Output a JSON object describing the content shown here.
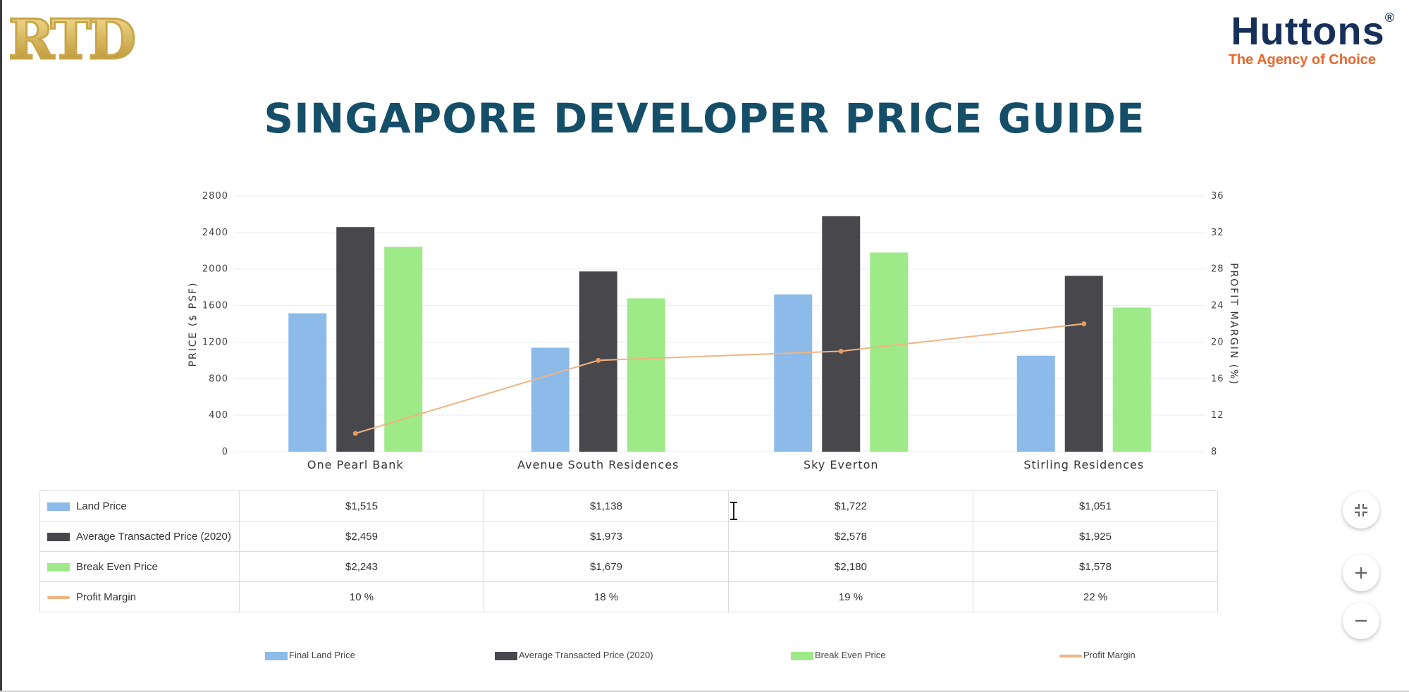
{
  "header": {
    "logo_left_text": "RTD",
    "logo_right_brand": "Huttons",
    "logo_right_reg": "®",
    "logo_right_tagline": "The Agency of Choice"
  },
  "title": "SINGAPORE DEVELOPER PRICE GUIDE",
  "chart_data": {
    "type": "bar",
    "categories": [
      "One Pearl Bank",
      "Avenue South Residences",
      "Sky Everton",
      "Stirling Residences"
    ],
    "series": [
      {
        "name": "Land Price",
        "type": "bar",
        "axis": "left",
        "color": "#8cbbea",
        "values": [
          1515,
          1138,
          1722,
          1051
        ]
      },
      {
        "name": "Average Transacted Price (2020)",
        "type": "bar",
        "axis": "left",
        "color": "#48484c",
        "values": [
          2459,
          1973,
          2578,
          1925
        ]
      },
      {
        "name": "Break Even Price",
        "type": "bar",
        "axis": "left",
        "color": "#9eea89",
        "values": [
          2243,
          1679,
          2180,
          1578
        ]
      },
      {
        "name": "Profit Margin",
        "type": "line",
        "axis": "right",
        "color": "#f0b483",
        "values": [
          10,
          18,
          19,
          22
        ]
      }
    ],
    "ylabel": "PRICE ($ PSF)",
    "ylim": [
      0,
      2800
    ],
    "yticks": [
      "0",
      "400",
      "800",
      "1200",
      "1600",
      "2000",
      "2400",
      "2800"
    ],
    "y2label": "PROFIT MARGIN (%)",
    "y2lim": [
      8,
      36
    ],
    "y2ticks": [
      "8",
      "12",
      "16",
      "20",
      "24",
      "28",
      "32",
      "36"
    ],
    "grid": true,
    "legend_position": "bottom"
  },
  "table": {
    "rows": [
      {
        "label": "Land Price",
        "color": "#8cbbea",
        "marker": "bar",
        "cells": [
          "$1,515",
          "$1,138",
          "$1,722",
          "$1,051"
        ]
      },
      {
        "label": "Average Transacted Price (2020)",
        "color": "#48484c",
        "marker": "bar",
        "cells": [
          "$2,459",
          "$1,973",
          "$2,578",
          "$1,925"
        ]
      },
      {
        "label": "Break Even Price",
        "color": "#9eea89",
        "marker": "bar",
        "cells": [
          "$2,243",
          "$1,679",
          "$2,180",
          "$1,578"
        ]
      },
      {
        "label": "Profit Margin",
        "color": "#f0b483",
        "marker": "line",
        "cells": [
          "10 %",
          "18 %",
          "19 %",
          "22 %"
        ]
      }
    ]
  },
  "legend": [
    {
      "label": "Final Land Price",
      "color": "#8cbbea",
      "marker": "bar"
    },
    {
      "label": "Average Transacted Price (2020)",
      "color": "#48484c",
      "marker": "bar"
    },
    {
      "label": "Break Even Price",
      "color": "#9eea89",
      "marker": "bar"
    },
    {
      "label": "Profit Margin",
      "color": "#f0b483",
      "marker": "line"
    }
  ],
  "controls": {
    "collapse_icon": "collapse-icon",
    "zoom_in_icon": "plus-icon",
    "zoom_out_icon": "minus-icon"
  }
}
